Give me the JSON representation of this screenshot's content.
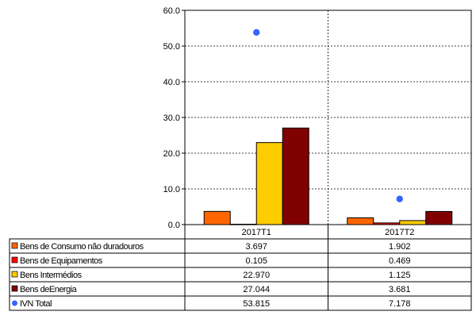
{
  "chart_data": {
    "type": "bar",
    "categories": [
      "2017T1",
      "2017T2"
    ],
    "series": [
      {
        "name": "Bens de Consumo não duradouros",
        "kind": "bar",
        "color": "#FF6600",
        "values": [
          3.697,
          1.902
        ],
        "labels": [
          "3.697",
          "1.902"
        ]
      },
      {
        "name": "Bens de Equipamentos",
        "kind": "bar",
        "color": "#FF0000",
        "values": [
          0.105,
          0.469
        ],
        "labels": [
          "0.105",
          "0.469"
        ]
      },
      {
        "name": "Bens Intermédios",
        "kind": "bar",
        "color": "#FFCC00",
        "values": [
          22.97,
          1.125
        ],
        "labels": [
          "22.970",
          "1.125"
        ]
      },
      {
        "name": "Bens deEnergia",
        "kind": "bar",
        "color": "#800000",
        "values": [
          27.044,
          3.681
        ],
        "labels": [
          "27.044",
          "3.681"
        ]
      },
      {
        "name": "IVN Total",
        "kind": "point",
        "color": "#3366FF",
        "values": [
          53.815,
          7.178
        ],
        "labels": [
          "53.815",
          "7.178"
        ]
      }
    ],
    "ylim": [
      0,
      60
    ],
    "yticks": [
      "0.0",
      "10.0",
      "20.0",
      "30.0",
      "40.0",
      "50.0",
      "60.0"
    ],
    "grid": "horizontal dashed",
    "legend": "data table below chart"
  }
}
